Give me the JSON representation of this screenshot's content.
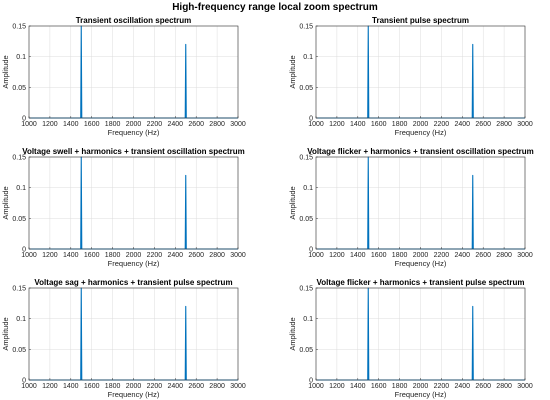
{
  "figure_title": "High-frequency range local zoom spectrum",
  "colors": {
    "series": "#0072BD",
    "grid": "#dcdcdc",
    "axis": "#333333"
  },
  "chart_data": [
    {
      "type": "line",
      "title": "Transient oscillation spectrum",
      "xlabel": "Frequency (Hz)",
      "ylabel": "Amplitude",
      "xlim": [
        1000,
        3000
      ],
      "ylim": [
        0,
        0.15
      ],
      "xticks": [
        1000,
        1200,
        1400,
        1600,
        1800,
        2000,
        2200,
        2400,
        2600,
        2800,
        3000
      ],
      "yticks": [
        0,
        0.05,
        0.1,
        0.15
      ],
      "grid": true,
      "series": [
        {
          "x": [
            1000,
            1495,
            1500,
            1505,
            2495,
            2500,
            2505,
            3000
          ],
          "y": [
            0,
            0,
            0.15,
            0,
            0,
            0.12,
            0,
            0
          ]
        }
      ]
    },
    {
      "type": "line",
      "title": "Transient pulse spectrum",
      "xlabel": "Frequency (Hz)",
      "ylabel": "Amplitude",
      "xlim": [
        1000,
        3000
      ],
      "ylim": [
        0,
        0.15
      ],
      "xticks": [
        1000,
        1200,
        1400,
        1600,
        1800,
        2000,
        2200,
        2400,
        2600,
        2800,
        3000
      ],
      "yticks": [
        0,
        0.05,
        0.1,
        0.15
      ],
      "grid": true,
      "series": [
        {
          "x": [
            1000,
            1495,
            1500,
            1505,
            2495,
            2500,
            2505,
            3000
          ],
          "y": [
            0,
            0,
            0.15,
            0,
            0,
            0.12,
            0,
            0
          ]
        }
      ]
    },
    {
      "type": "line",
      "title": "Voltage swell + harmonics + transient oscillation spectrum",
      "xlabel": "Frequency (Hz)",
      "ylabel": "Amplitude",
      "xlim": [
        1000,
        3000
      ],
      "ylim": [
        0,
        0.15
      ],
      "xticks": [
        1000,
        1200,
        1400,
        1600,
        1800,
        2000,
        2200,
        2400,
        2600,
        2800,
        3000
      ],
      "yticks": [
        0,
        0.05,
        0.1,
        0.15
      ],
      "grid": true,
      "series": [
        {
          "x": [
            1000,
            1495,
            1500,
            1505,
            2495,
            2500,
            2505,
            3000
          ],
          "y": [
            0,
            0,
            0.15,
            0,
            0,
            0.12,
            0,
            0
          ]
        }
      ]
    },
    {
      "type": "line",
      "title": "Voltage flicker + harmonics + transient oscillation spectrum",
      "xlabel": "Frequency (Hz)",
      "ylabel": "Amplitude",
      "xlim": [
        1000,
        3000
      ],
      "ylim": [
        0,
        0.15
      ],
      "xticks": [
        1000,
        1200,
        1400,
        1600,
        1800,
        2000,
        2200,
        2400,
        2600,
        2800,
        3000
      ],
      "yticks": [
        0,
        0.05,
        0.1,
        0.15
      ],
      "grid": true,
      "series": [
        {
          "x": [
            1000,
            1495,
            1500,
            1505,
            2495,
            2500,
            2505,
            3000
          ],
          "y": [
            0,
            0,
            0.15,
            0,
            0,
            0.12,
            0,
            0
          ]
        }
      ]
    },
    {
      "type": "line",
      "title": "Voltage sag + harmonics + transient pulse spectrum",
      "xlabel": "Frequency (Hz)",
      "ylabel": "Amplitude",
      "xlim": [
        1000,
        3000
      ],
      "ylim": [
        0,
        0.15
      ],
      "xticks": [
        1000,
        1200,
        1400,
        1600,
        1800,
        2000,
        2200,
        2400,
        2600,
        2800,
        3000
      ],
      "yticks": [
        0,
        0.05,
        0.1,
        0.15
      ],
      "grid": true,
      "series": [
        {
          "x": [
            1000,
            1495,
            1500,
            1505,
            2495,
            2500,
            2505,
            3000
          ],
          "y": [
            0,
            0,
            0.15,
            0,
            0,
            0.12,
            0,
            0
          ]
        }
      ]
    },
    {
      "type": "line",
      "title": "Voltage flicker + harmonics + transient pulse spectrum",
      "xlabel": "Frequency (Hz)",
      "ylabel": "Amplitude",
      "xlim": [
        1000,
        3000
      ],
      "ylim": [
        0,
        0.15
      ],
      "xticks": [
        1000,
        1200,
        1400,
        1600,
        1800,
        2000,
        2200,
        2400,
        2600,
        2800,
        3000
      ],
      "yticks": [
        0,
        0.05,
        0.1,
        0.15
      ],
      "grid": true,
      "series": [
        {
          "x": [
            1000,
            1495,
            1500,
            1505,
            2495,
            2500,
            2505,
            3000
          ],
          "y": [
            0,
            0,
            0.15,
            0,
            0,
            0.12,
            0,
            0
          ]
        }
      ]
    }
  ]
}
